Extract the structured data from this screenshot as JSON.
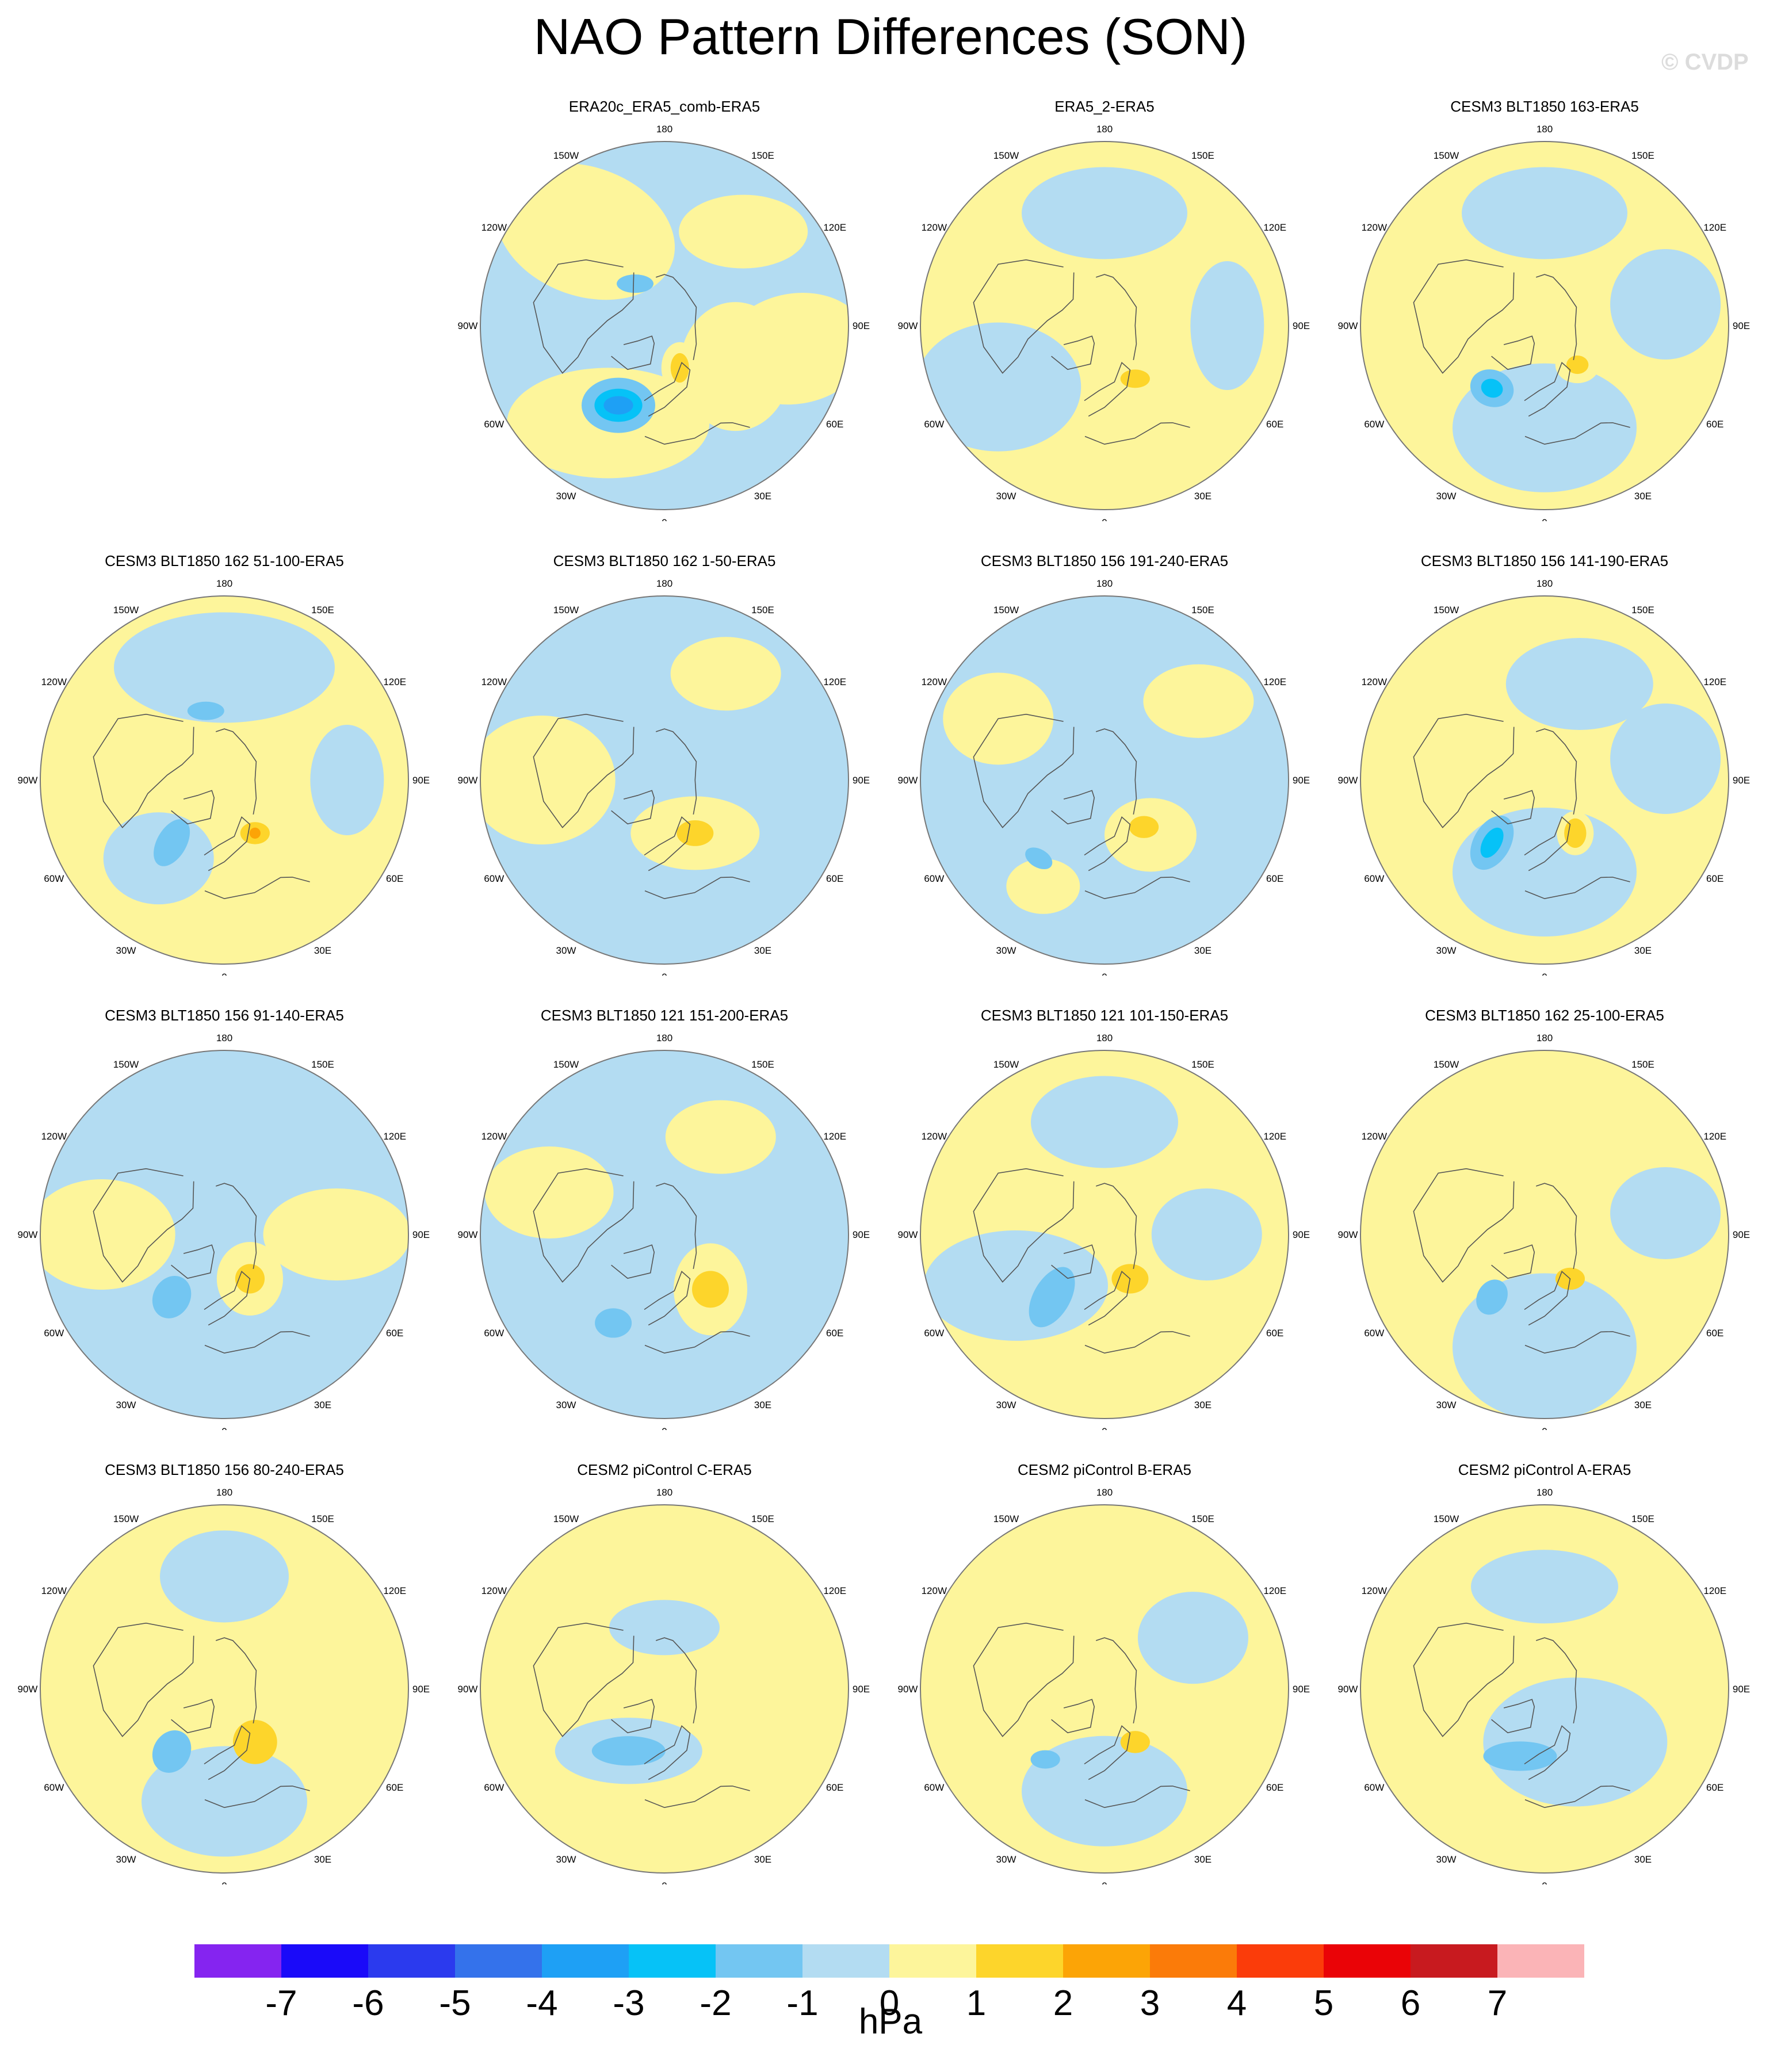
{
  "title": "NAO Pattern Differences (SON)",
  "watermark": "© CVDP",
  "axis_labels": [
    "180",
    "150E",
    "120E",
    "90E",
    "60E",
    "30E",
    "0",
    "30W",
    "60W",
    "90W",
    "120W",
    "150W"
  ],
  "colors": {
    "ocean_default": "#b3dcf2",
    "coastline": "#555555",
    "border": "#777777"
  },
  "colorbar": {
    "unit": "hPa",
    "tick_labels": [
      "-7",
      "-6",
      "-5",
      "-4",
      "-3",
      "-2",
      "-1",
      "0",
      "1",
      "2",
      "3",
      "4",
      "5",
      "6",
      "7"
    ],
    "bin_colors": [
      "#8524f0",
      "#1a0af9",
      "#2b3aee",
      "#3472eb",
      "#1ea0f5",
      "#06c2f7",
      "#73c6f2",
      "#b3dcf2",
      "#fdf59b",
      "#fdd52b",
      "#fca406",
      "#fb7b09",
      "#fb3c0a",
      "#ea0307",
      "#c81a1f",
      "#fbb4b7"
    ]
  },
  "panels": [
    {
      "title": "ERA20c_ERA5_comb-ERA5",
      "background": -1,
      "features": [
        {
          "lon": 330,
          "lat": 35,
          "rx": 0.55,
          "ry": 0.3,
          "rot": 0,
          "v": 1
        },
        {
          "lon": 220,
          "lat": 30,
          "rx": 0.5,
          "ry": 0.35,
          "rot": 20,
          "v": 1
        },
        {
          "lon": 80,
          "lat": 25,
          "rx": 0.4,
          "ry": 0.3,
          "rot": -10,
          "v": 1
        },
        {
          "lon": 140,
          "lat": 30,
          "rx": 0.35,
          "ry": 0.2,
          "rot": 0,
          "v": 1
        },
        {
          "lon": 60,
          "lat": 50,
          "rx": 0.3,
          "ry": 0.35,
          "rot": 0,
          "v": 1
        },
        {
          "lon": 330,
          "lat": 45,
          "rx": 0.2,
          "ry": 0.15,
          "rot": 0,
          "v": -2
        },
        {
          "lon": 330,
          "lat": 45,
          "rx": 0.13,
          "ry": 0.09,
          "rot": 0,
          "v": -3
        },
        {
          "lon": 330,
          "lat": 45,
          "rx": 0.08,
          "ry": 0.05,
          "rot": 0,
          "v": -4
        },
        {
          "lon": 215,
          "lat": 65,
          "rx": 0.1,
          "ry": 0.05,
          "rot": 0,
          "v": -2
        },
        {
          "lon": 20,
          "lat": 68,
          "rx": 0.1,
          "ry": 0.14,
          "rot": 0,
          "v": 1
        },
        {
          "lon": 20,
          "lat": 68,
          "rx": 0.05,
          "ry": 0.08,
          "rot": 0,
          "v": 2
        }
      ]
    },
    {
      "title": "ERA5_2-ERA5",
      "background": 1,
      "features": [
        {
          "lon": 300,
          "lat": 30,
          "rx": 0.45,
          "ry": 0.35,
          "rot": 0,
          "v": -1
        },
        {
          "lon": 180,
          "lat": 35,
          "rx": 0.45,
          "ry": 0.25,
          "rot": 0,
          "v": -1
        },
        {
          "lon": 90,
          "lat": 30,
          "rx": 0.2,
          "ry": 0.35,
          "rot": 0,
          "v": -1
        },
        {
          "lon": 30,
          "lat": 60,
          "rx": 0.08,
          "ry": 0.05,
          "rot": 0,
          "v": 2
        }
      ]
    },
    {
      "title": "CESM3 BLT1850 163-ERA5",
      "background": 1,
      "features": [
        {
          "lon": 0,
          "lat": 40,
          "rx": 0.5,
          "ry": 0.35,
          "rot": 0,
          "v": -1
        },
        {
          "lon": 180,
          "lat": 35,
          "rx": 0.45,
          "ry": 0.25,
          "rot": 0,
          "v": -1
        },
        {
          "lon": 100,
          "lat": 30,
          "rx": 0.3,
          "ry": 0.3,
          "rot": 0,
          "v": -1
        },
        {
          "lon": 320,
          "lat": 50,
          "rx": 0.12,
          "ry": 0.1,
          "rot": 20,
          "v": -2
        },
        {
          "lon": 320,
          "lat": 50,
          "rx": 0.06,
          "ry": 0.05,
          "rot": 20,
          "v": -3
        },
        {
          "lon": 40,
          "lat": 65,
          "rx": 0.12,
          "ry": 0.1,
          "rot": 0,
          "v": 1
        },
        {
          "lon": 40,
          "lat": 65,
          "rx": 0.06,
          "ry": 0.05,
          "rot": 0,
          "v": 2
        }
      ]
    },
    {
      "title": "CESM3 BLT1850 162 51-100-ERA5",
      "background": 1,
      "features": [
        {
          "lon": 180,
          "lat": 35,
          "rx": 0.6,
          "ry": 0.3,
          "rot": 0,
          "v": -1
        },
        {
          "lon": 320,
          "lat": 40,
          "rx": 0.3,
          "ry": 0.25,
          "rot": 0,
          "v": -1
        },
        {
          "lon": 90,
          "lat": 30,
          "rx": 0.2,
          "ry": 0.3,
          "rot": 0,
          "v": -1
        },
        {
          "lon": 320,
          "lat": 50,
          "rx": 0.08,
          "ry": 0.14,
          "rot": 30,
          "v": -2
        },
        {
          "lon": 195,
          "lat": 55,
          "rx": 0.1,
          "ry": 0.05,
          "rot": 0,
          "v": -2
        },
        {
          "lon": 30,
          "lat": 60,
          "rx": 0.12,
          "ry": 0.08,
          "rot": 0,
          "v": 1
        },
        {
          "lon": 30,
          "lat": 60,
          "rx": 0.08,
          "ry": 0.06,
          "rot": 0,
          "v": 2
        },
        {
          "lon": 30,
          "lat": 60,
          "rx": 0.03,
          "ry": 0.03,
          "rot": 0,
          "v": 3
        }
      ]
    },
    {
      "title": "CESM3 BLT1850 162 1-50-ERA5",
      "background": -1,
      "features": [
        {
          "lon": 270,
          "lat": 30,
          "rx": 0.4,
          "ry": 0.35,
          "rot": 0,
          "v": 1
        },
        {
          "lon": 150,
          "lat": 30,
          "rx": 0.3,
          "ry": 0.2,
          "rot": 0,
          "v": 1
        },
        {
          "lon": 30,
          "lat": 60,
          "rx": 0.35,
          "ry": 0.2,
          "rot": 0,
          "v": 1
        },
        {
          "lon": 30,
          "lat": 60,
          "rx": 0.1,
          "ry": 0.07,
          "rot": 0,
          "v": 2
        }
      ]
    },
    {
      "title": "CESM3 BLT1850 156 191-240-ERA5",
      "background": -1,
      "features": [
        {
          "lon": 240,
          "lat": 30,
          "rx": 0.3,
          "ry": 0.25,
          "rot": 0,
          "v": 1
        },
        {
          "lon": 130,
          "lat": 30,
          "rx": 0.3,
          "ry": 0.2,
          "rot": 0,
          "v": 1
        },
        {
          "lon": 40,
          "lat": 55,
          "rx": 0.25,
          "ry": 0.2,
          "rot": 0,
          "v": 1
        },
        {
          "lon": 330,
          "lat": 30,
          "rx": 0.2,
          "ry": 0.15,
          "rot": 0,
          "v": 1
        },
        {
          "lon": 320,
          "lat": 40,
          "rx": 0.08,
          "ry": 0.05,
          "rot": 30,
          "v": -2
        },
        {
          "lon": 40,
          "lat": 60,
          "rx": 0.08,
          "ry": 0.06,
          "rot": 0,
          "v": 2
        }
      ]
    },
    {
      "title": "CESM3 BLT1850 156 141-190-ERA5",
      "background": 1,
      "features": [
        {
          "lon": 0,
          "lat": 45,
          "rx": 0.5,
          "ry": 0.35,
          "rot": 0,
          "v": -1
        },
        {
          "lon": 160,
          "lat": 40,
          "rx": 0.4,
          "ry": 0.25,
          "rot": 0,
          "v": -1
        },
        {
          "lon": 100,
          "lat": 30,
          "rx": 0.3,
          "ry": 0.3,
          "rot": 0,
          "v": -1
        },
        {
          "lon": 320,
          "lat": 50,
          "rx": 0.1,
          "ry": 0.16,
          "rot": 30,
          "v": -2
        },
        {
          "lon": 320,
          "lat": 50,
          "rx": 0.05,
          "ry": 0.09,
          "rot": 30,
          "v": -3
        },
        {
          "lon": 30,
          "lat": 60,
          "rx": 0.1,
          "ry": 0.12,
          "rot": 0,
          "v": 1
        },
        {
          "lon": 30,
          "lat": 60,
          "rx": 0.06,
          "ry": 0.08,
          "rot": 0,
          "v": 2
        }
      ]
    },
    {
      "title": "CESM3 BLT1850 156 91-140-ERA5",
      "background": -1,
      "features": [
        {
          "lon": 270,
          "lat": 30,
          "rx": 0.4,
          "ry": 0.3,
          "rot": 0,
          "v": 1
        },
        {
          "lon": 90,
          "lat": 35,
          "rx": 0.4,
          "ry": 0.25,
          "rot": 0,
          "v": 1
        },
        {
          "lon": 30,
          "lat": 65,
          "rx": 0.18,
          "ry": 0.2,
          "rot": 0,
          "v": 1
        },
        {
          "lon": 320,
          "lat": 50,
          "rx": 0.1,
          "ry": 0.12,
          "rot": 30,
          "v": -2
        },
        {
          "lon": 30,
          "lat": 65,
          "rx": 0.08,
          "ry": 0.08,
          "rot": 0,
          "v": 2
        }
      ]
    },
    {
      "title": "CESM3 BLT1850 121 151-200-ERA5",
      "background": -1,
      "features": [
        {
          "lon": 250,
          "lat": 30,
          "rx": 0.35,
          "ry": 0.25,
          "rot": 0,
          "v": 1
        },
        {
          "lon": 150,
          "lat": 35,
          "rx": 0.3,
          "ry": 0.2,
          "rot": 0,
          "v": 1
        },
        {
          "lon": 40,
          "lat": 55,
          "rx": 0.2,
          "ry": 0.25,
          "rot": 0,
          "v": 1
        },
        {
          "lon": 330,
          "lat": 40,
          "rx": 0.1,
          "ry": 0.08,
          "rot": 0,
          "v": -2
        },
        {
          "lon": 40,
          "lat": 55,
          "rx": 0.1,
          "ry": 0.1,
          "rot": 0,
          "v": 2
        }
      ]
    },
    {
      "title": "CESM3 BLT1850 121 101-150-ERA5",
      "background": 1,
      "features": [
        {
          "lon": 300,
          "lat": 40,
          "rx": 0.5,
          "ry": 0.3,
          "rot": 0,
          "v": -1
        },
        {
          "lon": 180,
          "lat": 35,
          "rx": 0.4,
          "ry": 0.25,
          "rot": 0,
          "v": -1
        },
        {
          "lon": 90,
          "lat": 40,
          "rx": 0.3,
          "ry": 0.25,
          "rot": 0,
          "v": -1
        },
        {
          "lon": 320,
          "lat": 50,
          "rx": 0.1,
          "ry": 0.18,
          "rot": 30,
          "v": -2
        },
        {
          "lon": 30,
          "lat": 65,
          "rx": 0.1,
          "ry": 0.08,
          "rot": 0,
          "v": 2
        }
      ]
    },
    {
      "title": "CESM3 BLT1850 162 25-100-ERA5",
      "background": 1,
      "features": [
        {
          "lon": 0,
          "lat": 35,
          "rx": 0.5,
          "ry": 0.4,
          "rot": 0,
          "v": -1
        },
        {
          "lon": 100,
          "lat": 30,
          "rx": 0.3,
          "ry": 0.25,
          "rot": 0,
          "v": -1
        },
        {
          "lon": 320,
          "lat": 50,
          "rx": 0.08,
          "ry": 0.1,
          "rot": 30,
          "v": -2
        },
        {
          "lon": 30,
          "lat": 65,
          "rx": 0.08,
          "ry": 0.06,
          "rot": 0,
          "v": 2
        }
      ]
    },
    {
      "title": "CESM3 BLT1850 156 80-240-ERA5",
      "background": 1,
      "features": [
        {
          "lon": 0,
          "lat": 35,
          "rx": 0.45,
          "ry": 0.3,
          "rot": 0,
          "v": -1
        },
        {
          "lon": 180,
          "lat": 35,
          "rx": 0.35,
          "ry": 0.25,
          "rot": 0,
          "v": -1
        },
        {
          "lon": 320,
          "lat": 50,
          "rx": 0.1,
          "ry": 0.12,
          "rot": 30,
          "v": -2
        },
        {
          "lon": 30,
          "lat": 60,
          "rx": 0.12,
          "ry": 0.12,
          "rot": 0,
          "v": 2
        }
      ]
    },
    {
      "title": "CESM2 piControl C-ERA5",
      "background": 1,
      "features": [
        {
          "lon": 330,
          "lat": 55,
          "rx": 0.4,
          "ry": 0.18,
          "rot": 0,
          "v": -1
        },
        {
          "lon": 180,
          "lat": 60,
          "rx": 0.3,
          "ry": 0.15,
          "rot": 0,
          "v": -1
        },
        {
          "lon": 330,
          "lat": 55,
          "rx": 0.2,
          "ry": 0.08,
          "rot": 0,
          "v": -2
        }
      ]
    },
    {
      "title": "CESM2 piControl B-ERA5",
      "background": 1,
      "features": [
        {
          "lon": 0,
          "lat": 40,
          "rx": 0.45,
          "ry": 0.3,
          "rot": 0,
          "v": -1
        },
        {
          "lon": 120,
          "lat": 40,
          "rx": 0.3,
          "ry": 0.25,
          "rot": 0,
          "v": -1
        },
        {
          "lon": 320,
          "lat": 45,
          "rx": 0.08,
          "ry": 0.05,
          "rot": 0,
          "v": -2
        },
        {
          "lon": 30,
          "lat": 60,
          "rx": 0.08,
          "ry": 0.06,
          "rot": 0,
          "v": 2
        }
      ]
    },
    {
      "title": "CESM2 piControl A-ERA5",
      "background": 1,
      "features": [
        {
          "lon": 30,
          "lat": 60,
          "rx": 0.5,
          "ry": 0.35,
          "rot": 0,
          "v": -1
        },
        {
          "lon": 180,
          "lat": 40,
          "rx": 0.4,
          "ry": 0.2,
          "rot": 0,
          "v": -1
        },
        {
          "lon": 340,
          "lat": 55,
          "rx": 0.2,
          "ry": 0.08,
          "rot": 0,
          "v": -2
        }
      ]
    }
  ]
}
